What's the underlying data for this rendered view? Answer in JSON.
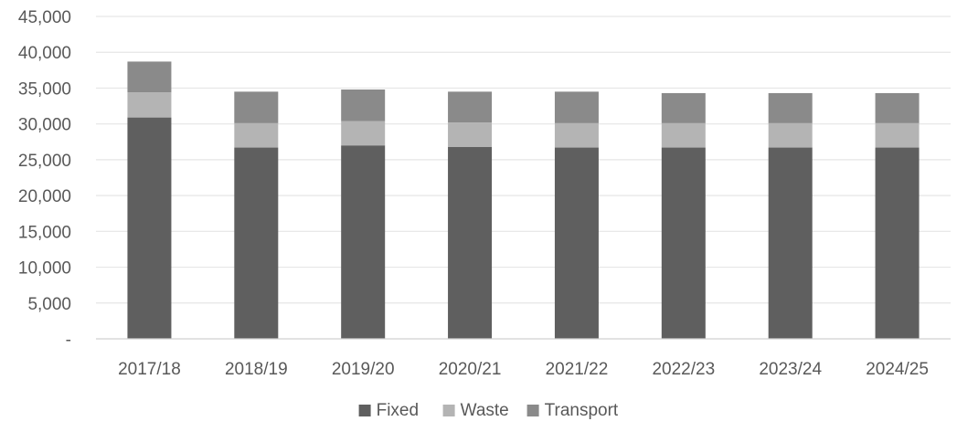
{
  "chart_data": {
    "type": "bar",
    "stacked": true,
    "title": "",
    "xlabel": "",
    "ylabel": "",
    "categories": [
      "2017/18",
      "2018/19",
      "2019/20",
      "2020/21",
      "2021/22",
      "2022/23",
      "2023/24",
      "2024/25"
    ],
    "series": [
      {
        "name": "Fixed",
        "color": "#5f5f5f",
        "values": [
          30900,
          26700,
          27000,
          26800,
          26700,
          26700,
          26700,
          26700
        ]
      },
      {
        "name": "Waste",
        "color": "#b4b4b4",
        "values": [
          3500,
          3400,
          3400,
          3400,
          3400,
          3400,
          3400,
          3400
        ]
      },
      {
        "name": "Transport",
        "color": "#8a8a8a",
        "values": [
          4300,
          4400,
          4400,
          4300,
          4400,
          4200,
          4200,
          4200
        ]
      }
    ],
    "ylim": [
      0,
      45000
    ],
    "yticks": [
      0,
      5000,
      10000,
      15000,
      20000,
      25000,
      30000,
      35000,
      40000,
      45000
    ],
    "ytick_labels": [
      "-",
      "5,000",
      "10,000",
      "15,000",
      "20,000",
      "25,000",
      "30,000",
      "35,000",
      "40,000",
      "45,000"
    ],
    "grid": true,
    "legend_position": "bottom"
  }
}
